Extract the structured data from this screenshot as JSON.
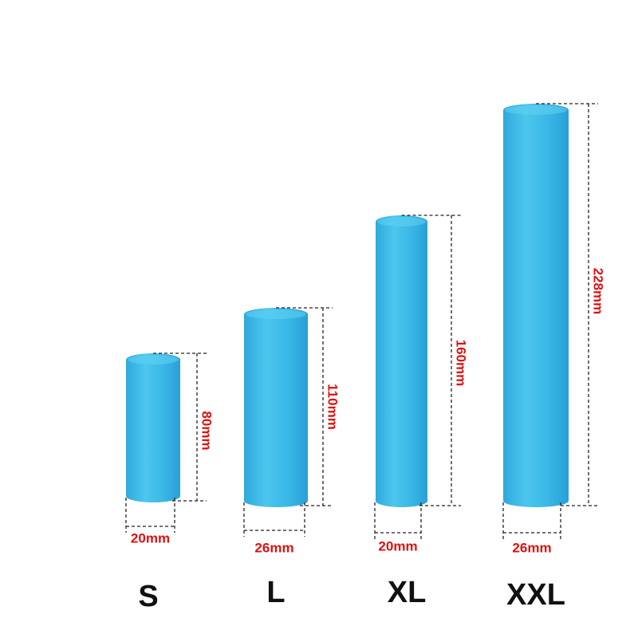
{
  "items": [
    {
      "size": "S",
      "height": "80mm",
      "width": "20mm"
    },
    {
      "size": "L",
      "height": "110mm",
      "width": "26mm"
    },
    {
      "size": "XL",
      "height": "160mm",
      "width": "20mm"
    },
    {
      "size": "XXL",
      "height": "228mm",
      "width": "26mm"
    }
  ]
}
